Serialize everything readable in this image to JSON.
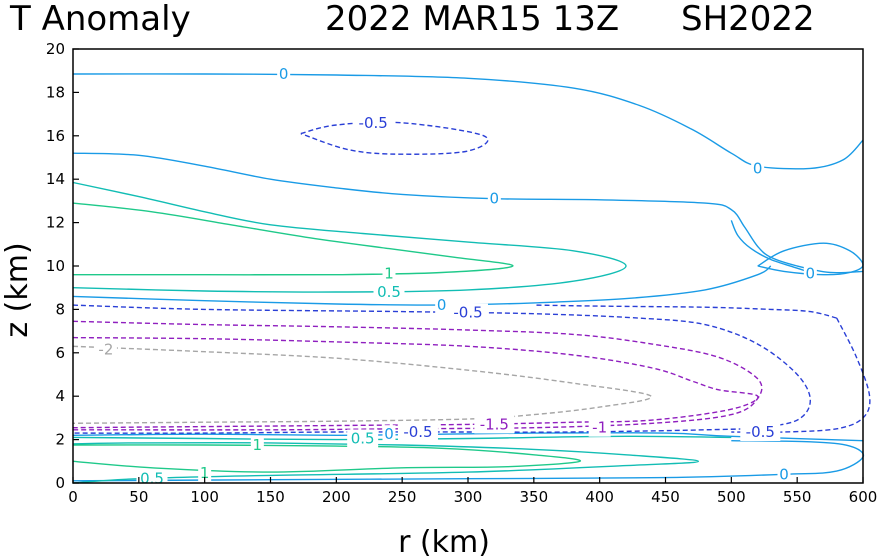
{
  "chart_data": {
    "type": "contour",
    "title_left": "T Anomaly",
    "title_center": "2022 MAR15 13Z",
    "title_right": "SH2022",
    "xlabel": "r (km)",
    "ylabel": "z (km)",
    "xlim": [
      0,
      600
    ],
    "ylim": [
      0,
      20
    ],
    "xticks": [
      "0",
      "50",
      "100",
      "150",
      "200",
      "250",
      "300",
      "350",
      "400",
      "450",
      "500",
      "550",
      "600"
    ],
    "yticks": [
      "0",
      "2",
      "4",
      "6",
      "8",
      "10",
      "12",
      "14",
      "16",
      "18",
      "20"
    ],
    "grid": false,
    "colors": {
      "0": "#1a9be6",
      "0.5": "#12bdb4",
      "1": "#1fc98a",
      "-0.5": "#2a3fd6",
      "-1": "#8f1fbf",
      "-1.5": "#8f1fbf",
      "-2": "#a6a6a6"
    },
    "contours": [
      {
        "level": "0",
        "dashed": false,
        "points": [
          [
            0,
            18.85
          ],
          [
            100,
            18.85
          ],
          [
            200,
            18.8
          ],
          [
            300,
            18.65
          ],
          [
            380,
            18.2
          ],
          [
            430,
            17.4
          ],
          [
            470,
            16.3
          ],
          [
            500,
            15.2
          ],
          [
            520,
            14.6
          ],
          [
            560,
            14.5
          ],
          [
            585,
            14.9
          ],
          [
            600,
            15.8
          ]
        ]
      },
      {
        "level": "0",
        "dashed": false,
        "points": [
          [
            0,
            15.2
          ],
          [
            50,
            15.1
          ],
          [
            100,
            14.6
          ],
          [
            150,
            14.0
          ],
          [
            200,
            13.6
          ],
          [
            250,
            13.3
          ],
          [
            320,
            13.1
          ],
          [
            400,
            13.05
          ],
          [
            480,
            12.9
          ],
          [
            500,
            12.6
          ],
          [
            510,
            11.8
          ],
          [
            520,
            10.9
          ],
          [
            530,
            10.4
          ],
          [
            550,
            10.0
          ],
          [
            575,
            9.7
          ],
          [
            600,
            9.75
          ]
        ]
      },
      {
        "level": "0",
        "dashed": false,
        "points": [
          [
            500,
            12.1
          ],
          [
            505,
            11.4
          ],
          [
            515,
            10.8
          ],
          [
            530,
            10.3
          ],
          [
            550,
            9.9
          ],
          [
            560,
            9.7
          ]
        ]
      },
      {
        "level": "0",
        "dashed": false,
        "points": [
          [
            520,
            10.0
          ],
          [
            540,
            10.7
          ],
          [
            570,
            11.05
          ],
          [
            590,
            10.7
          ],
          [
            600,
            10.05
          ],
          [
            590,
            9.7
          ],
          [
            570,
            9.6
          ],
          [
            540,
            9.75
          ],
          [
            520,
            10.0
          ]
        ]
      },
      {
        "level": "0",
        "dashed": false,
        "points": [
          [
            0,
            8.6
          ],
          [
            100,
            8.4
          ],
          [
            200,
            8.25
          ],
          [
            280,
            8.2
          ],
          [
            350,
            8.3
          ],
          [
            420,
            8.5
          ],
          [
            480,
            8.9
          ],
          [
            520,
            9.6
          ],
          [
            530,
            10.0
          ]
        ]
      },
      {
        "level": "0",
        "dashed": false,
        "points": [
          [
            0,
            2.2
          ],
          [
            100,
            2.25
          ],
          [
            200,
            2.2
          ],
          [
            280,
            2.25
          ],
          [
            350,
            2.3
          ],
          [
            450,
            2.3
          ],
          [
            500,
            2.15
          ],
          [
            600,
            1.95
          ]
        ]
      },
      {
        "level": "0",
        "dashed": false,
        "points": [
          [
            0,
            0.1
          ],
          [
            150,
            0.15
          ],
          [
            300,
            0.2
          ],
          [
            450,
            0.25
          ],
          [
            540,
            0.4
          ],
          [
            580,
            0.55
          ],
          [
            600,
            1.2
          ],
          [
            590,
            1.7
          ],
          [
            560,
            1.9
          ],
          [
            500,
            1.95
          ]
        ]
      },
      {
        "level": "0.5",
        "dashed": false,
        "points": [
          [
            0,
            9.0
          ],
          [
            100,
            8.85
          ],
          [
            200,
            8.8
          ],
          [
            300,
            8.9
          ],
          [
            380,
            9.3
          ],
          [
            420,
            10.0
          ],
          [
            380,
            10.7
          ],
          [
            300,
            11.1
          ],
          [
            220,
            11.5
          ],
          [
            150,
            11.9
          ],
          [
            100,
            12.5
          ],
          [
            50,
            13.2
          ],
          [
            0,
            13.85
          ]
        ]
      },
      {
        "level": "0.5",
        "dashed": false,
        "points": [
          [
            0,
            2.1
          ],
          [
            100,
            2.05
          ],
          [
            200,
            2.0
          ],
          [
            300,
            2.05
          ],
          [
            350,
            2.1
          ],
          [
            420,
            2.15
          ],
          [
            500,
            2.1
          ]
        ]
      },
      {
        "level": "0.5",
        "dashed": false,
        "points": [
          [
            0,
            0.0
          ],
          [
            50,
            0.2
          ],
          [
            150,
            0.35
          ],
          [
            300,
            0.5
          ],
          [
            420,
            0.8
          ],
          [
            475,
            1.0
          ],
          [
            420,
            1.3
          ],
          [
            350,
            1.55
          ],
          [
            250,
            1.75
          ],
          [
            150,
            1.85
          ],
          [
            50,
            1.85
          ],
          [
            0,
            1.8
          ]
        ]
      },
      {
        "level": "1",
        "dashed": false,
        "points": [
          [
            0,
            9.6
          ],
          [
            100,
            9.6
          ],
          [
            200,
            9.6
          ],
          [
            280,
            9.7
          ],
          [
            334,
            10.0
          ],
          [
            290,
            10.4
          ],
          [
            240,
            10.8
          ],
          [
            180,
            11.3
          ],
          [
            120,
            11.9
          ],
          [
            60,
            12.5
          ],
          [
            0,
            12.9
          ]
        ]
      },
      {
        "level": "1",
        "dashed": false,
        "points": [
          [
            0,
            1.75
          ],
          [
            100,
            1.75
          ],
          [
            200,
            1.7
          ],
          [
            280,
            1.6
          ],
          [
            350,
            1.3
          ],
          [
            385,
            1.0
          ],
          [
            330,
            0.75
          ],
          [
            250,
            0.7
          ],
          [
            150,
            0.5
          ],
          [
            60,
            0.7
          ],
          [
            0,
            1.0
          ]
        ]
      },
      {
        "level": "-0.5",
        "dashed": true,
        "points": [
          [
            0,
            8.2
          ],
          [
            100,
            8.0
          ],
          [
            250,
            7.9
          ],
          [
            350,
            7.8
          ],
          [
            430,
            7.6
          ],
          [
            480,
            7.3
          ],
          [
            520,
            6.4
          ],
          [
            550,
            5.0
          ],
          [
            560,
            3.8
          ],
          [
            550,
            2.9
          ],
          [
            520,
            2.55
          ],
          [
            480,
            2.45
          ],
          [
            380,
            2.35
          ],
          [
            300,
            2.35
          ],
          [
            200,
            2.35
          ],
          [
            100,
            2.3
          ],
          [
            0,
            2.3
          ]
        ]
      },
      {
        "level": "-0.5",
        "dashed": true,
        "points": [
          [
            580,
            7.6
          ],
          [
            560,
            7.9
          ],
          [
            530,
            8.0
          ],
          [
            480,
            8.1
          ],
          [
            400,
            8.15
          ],
          [
            350,
            8.2
          ]
        ]
      },
      {
        "level": "-0.5",
        "dashed": true,
        "points": [
          [
            580,
            7.6
          ],
          [
            595,
            5.8
          ],
          [
            605,
            4.0
          ],
          [
            600,
            3.0
          ],
          [
            580,
            2.5
          ],
          [
            540,
            2.35
          ],
          [
            500,
            2.35
          ]
        ]
      },
      {
        "level": "-0.5",
        "dashed": true,
        "points": [
          [
            173,
            16.1
          ],
          [
            200,
            16.5
          ],
          [
            250,
            16.6
          ],
          [
            312,
            16.0
          ],
          [
            300,
            15.3
          ],
          [
            250,
            15.15
          ],
          [
            210,
            15.35
          ],
          [
            173,
            16.1
          ]
        ]
      },
      {
        "level": "-1",
        "dashed": true,
        "points": [
          [
            0,
            7.45
          ],
          [
            100,
            7.3
          ],
          [
            200,
            7.2
          ],
          [
            300,
            7.05
          ],
          [
            380,
            6.85
          ],
          [
            440,
            6.4
          ],
          [
            490,
            5.8
          ],
          [
            520,
            4.8
          ],
          [
            520,
            3.9
          ],
          [
            500,
            3.15
          ],
          [
            440,
            2.75
          ],
          [
            350,
            2.55
          ],
          [
            250,
            2.5
          ],
          [
            150,
            2.45
          ],
          [
            0,
            2.45
          ]
        ]
      },
      {
        "level": "-1.5",
        "dashed": true,
        "points": [
          [
            0,
            6.7
          ],
          [
            100,
            6.65
          ],
          [
            200,
            6.5
          ],
          [
            300,
            6.3
          ],
          [
            380,
            5.9
          ],
          [
            440,
            5.3
          ],
          [
            470,
            4.7
          ],
          [
            490,
            4.3
          ],
          [
            520,
            4.0
          ],
          [
            500,
            3.4
          ],
          [
            440,
            2.9
          ],
          [
            380,
            2.8
          ],
          [
            300,
            2.7
          ],
          [
            200,
            2.65
          ],
          [
            100,
            2.6
          ],
          [
            0,
            2.55
          ]
        ]
      },
      {
        "level": "-2",
        "dashed": true,
        "points": [
          [
            0,
            6.3
          ],
          [
            100,
            6.05
          ],
          [
            200,
            5.75
          ],
          [
            300,
            5.2
          ],
          [
            380,
            4.6
          ],
          [
            439,
            4.0
          ],
          [
            400,
            3.5
          ],
          [
            350,
            3.15
          ],
          [
            300,
            2.95
          ],
          [
            200,
            2.85
          ],
          [
            100,
            2.8
          ],
          [
            0,
            2.75
          ]
        ]
      }
    ],
    "labels": [
      {
        "text": "0",
        "x": 160,
        "y": 18.85,
        "level": "0"
      },
      {
        "text": "-0.5",
        "x": 228,
        "y": 16.6,
        "level": "-0.5"
      },
      {
        "text": "0",
        "x": 520,
        "y": 14.5,
        "level": "0"
      },
      {
        "text": "0",
        "x": 320,
        "y": 13.1,
        "level": "0"
      },
      {
        "text": "1",
        "x": 240,
        "y": 9.65,
        "level": "1"
      },
      {
        "text": "0",
        "x": 560,
        "y": 9.65,
        "level": "0"
      },
      {
        "text": "0.5",
        "x": 240,
        "y": 8.8,
        "level": "0.5"
      },
      {
        "text": "0",
        "x": 280,
        "y": 8.2,
        "level": "0"
      },
      {
        "text": "-0.5",
        "x": 300,
        "y": 7.85,
        "level": "-0.5"
      },
      {
        "text": "-2",
        "x": 25,
        "y": 6.15,
        "level": "-2"
      },
      {
        "text": "-1.5",
        "x": 320,
        "y": 2.7,
        "level": "-1.5"
      },
      {
        "text": "-1",
        "x": 400,
        "y": 2.55,
        "level": "-1"
      },
      {
        "text": "-0.5",
        "x": 262,
        "y": 2.35,
        "level": "-0.5"
      },
      {
        "text": "-0.5",
        "x": 522,
        "y": 2.35,
        "level": "-0.5"
      },
      {
        "text": "0",
        "x": 240,
        "y": 2.25,
        "level": "0"
      },
      {
        "text": "0.5",
        "x": 220,
        "y": 2.05,
        "level": "0.5"
      },
      {
        "text": "1",
        "x": 140,
        "y": 1.75,
        "level": "1"
      },
      {
        "text": "1",
        "x": 100,
        "y": 0.45,
        "level": "1"
      },
      {
        "text": "0.5",
        "x": 60,
        "y": 0.2,
        "level": "0.5"
      },
      {
        "text": "0",
        "x": 540,
        "y": 0.4,
        "level": "0"
      }
    ]
  }
}
